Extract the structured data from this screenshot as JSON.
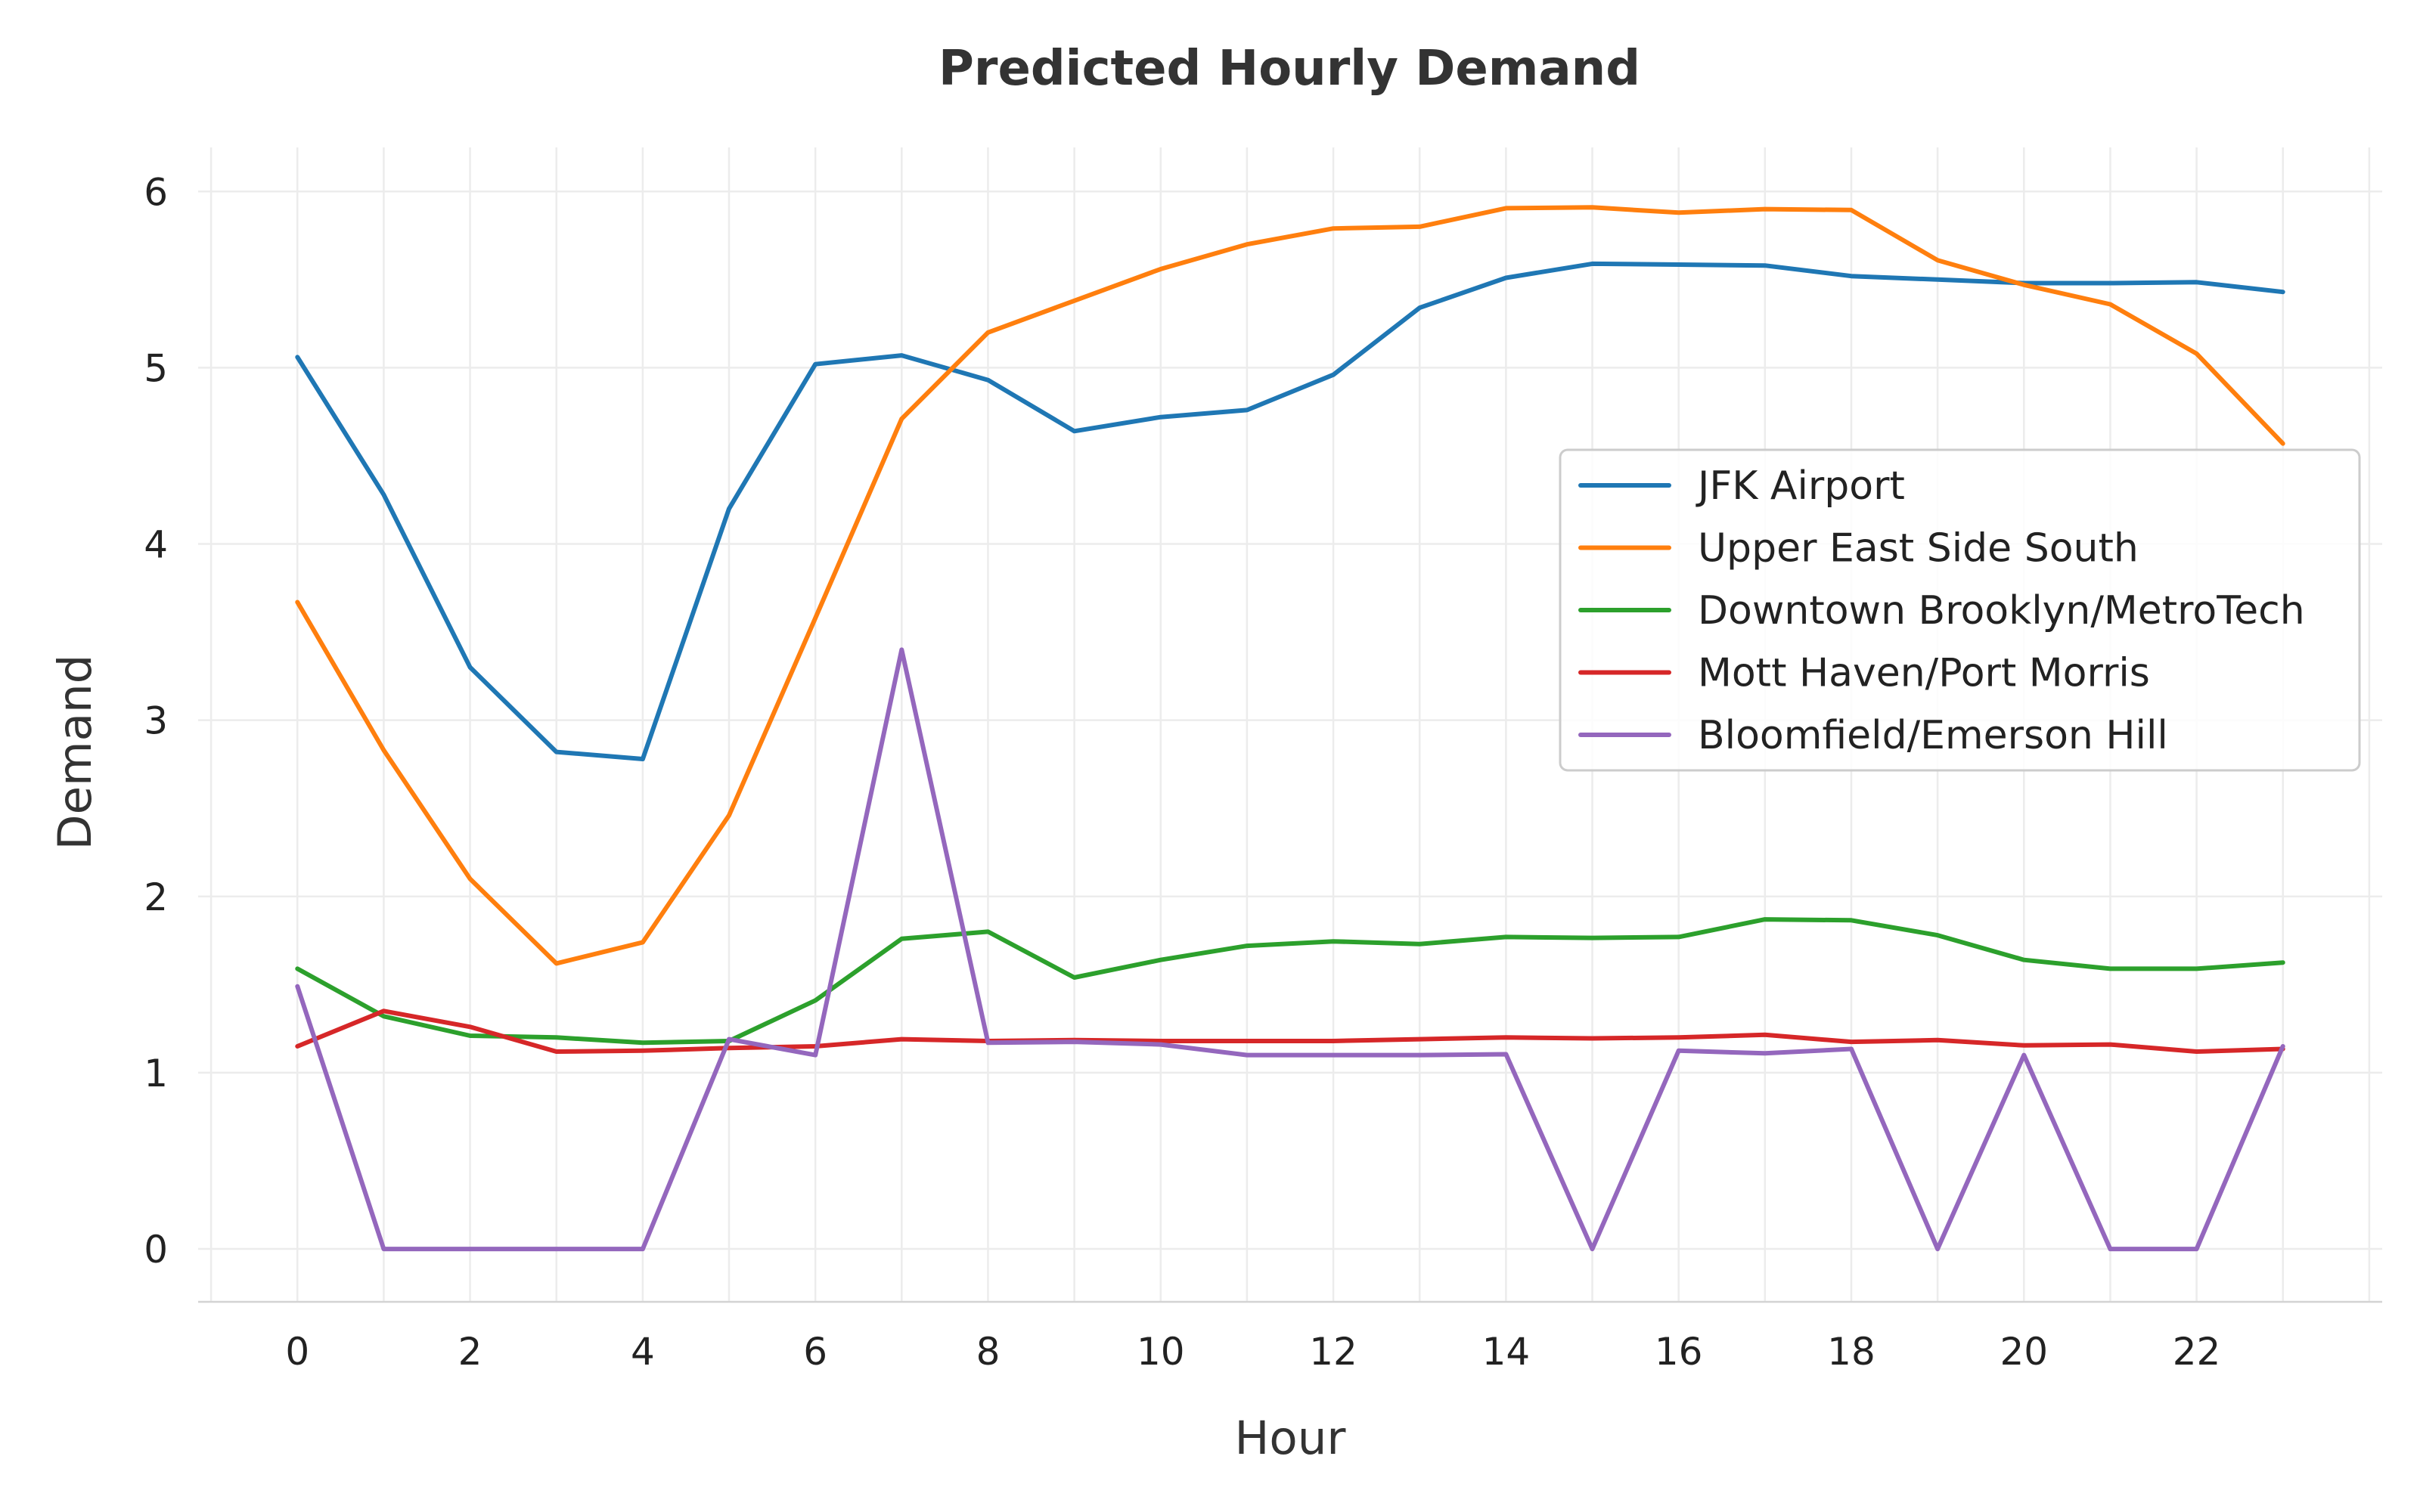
{
  "chart_data": {
    "type": "line",
    "title": "Predicted Hourly Demand",
    "xlabel": "Hour",
    "ylabel": "Demand",
    "x": [
      0,
      1,
      2,
      3,
      4,
      5,
      6,
      7,
      8,
      9,
      10,
      11,
      12,
      13,
      14,
      15,
      16,
      17,
      18,
      19,
      20,
      21,
      22,
      23
    ],
    "xlim": [
      -1.15,
      24.15
    ],
    "ylim": [
      -0.3,
      6.25
    ],
    "xticks": [
      0,
      2,
      4,
      6,
      8,
      10,
      12,
      14,
      16,
      18,
      20,
      22
    ],
    "yticks": [
      0,
      1,
      2,
      3,
      4,
      5,
      6
    ],
    "grid": true,
    "legend_position": "center-right",
    "series": [
      {
        "name": "JFK Airport",
        "color": "#1f77b4",
        "values": [
          5.06,
          4.28,
          3.3,
          2.82,
          2.78,
          4.2,
          5.02,
          5.07,
          4.93,
          4.64,
          4.72,
          4.76,
          4.96,
          5.34,
          5.51,
          5.59,
          5.585,
          5.58,
          5.52,
          5.5,
          5.48,
          5.48,
          5.485,
          5.43
        ]
      },
      {
        "name": "Upper East Side South",
        "color": "#ff7f0e",
        "values": [
          3.67,
          2.83,
          2.1,
          1.62,
          1.74,
          2.46,
          3.58,
          4.71,
          5.2,
          5.38,
          5.56,
          5.7,
          5.79,
          5.8,
          5.905,
          5.91,
          5.88,
          5.9,
          5.895,
          5.61,
          5.47,
          5.36,
          5.08,
          4.57
        ]
      },
      {
        "name": "Downtown Brooklyn/MetroTech",
        "color": "#2ca02c",
        "values": [
          1.59,
          1.32,
          1.21,
          1.2,
          1.17,
          1.18,
          1.41,
          1.76,
          1.8,
          1.54,
          1.64,
          1.72,
          1.745,
          1.73,
          1.77,
          1.765,
          1.77,
          1.87,
          1.865,
          1.78,
          1.64,
          1.59,
          1.59,
          1.625
        ]
      },
      {
        "name": "Mott Haven/Port Morris",
        "color": "#d62728",
        "values": [
          1.15,
          1.35,
          1.26,
          1.12,
          1.125,
          1.14,
          1.15,
          1.19,
          1.18,
          1.185,
          1.18,
          1.18,
          1.18,
          1.19,
          1.2,
          1.195,
          1.2,
          1.215,
          1.175,
          1.185,
          1.155,
          1.16,
          1.12,
          1.135
        ]
      },
      {
        "name": "Bloomfield/Emerson Hill",
        "color": "#9467bd",
        "values": [
          1.49,
          0,
          0,
          0,
          0,
          1.19,
          1.1,
          3.4,
          1.17,
          1.175,
          1.16,
          1.1,
          1.1,
          1.1,
          1.105,
          0,
          1.125,
          1.11,
          1.135,
          0,
          1.1,
          0,
          0,
          1.15
        ]
      }
    ]
  }
}
